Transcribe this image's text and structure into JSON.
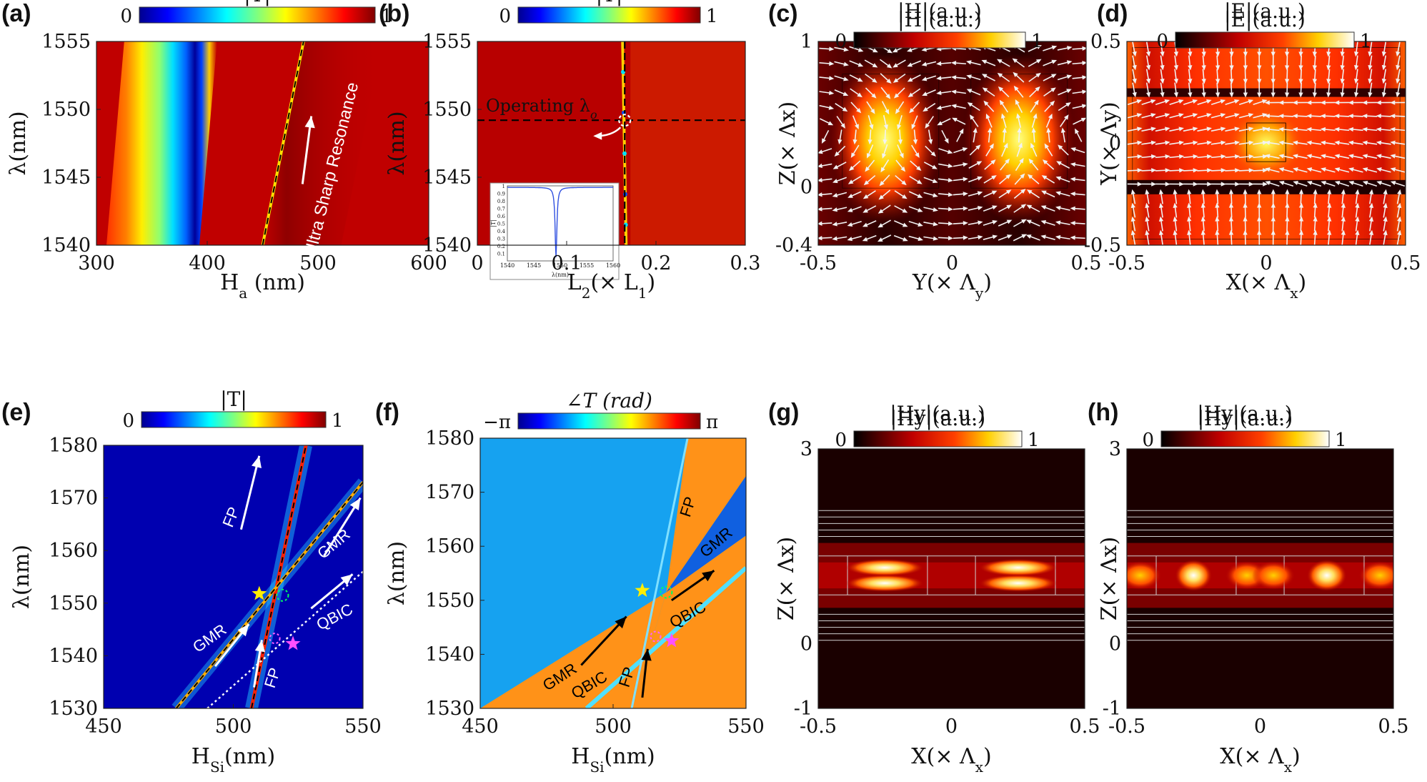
{
  "panels": [
    {
      "label": "(a)",
      "cbar_title": "|T|",
      "cbar_min": "0",
      "cbar_max": "1",
      "colormap": "jet",
      "xlabel": "H",
      "xlabel_sub": "a",
      "xlabel_unit": " (nm)",
      "ylabel": "λ(nm)",
      "xticks": [
        "300",
        "400",
        "500",
        "600"
      ],
      "yticks": [
        "1540",
        "1545",
        "1550",
        "1555"
      ],
      "annotations": [
        "Ultra Sharp Resonance"
      ]
    },
    {
      "label": "(b)",
      "cbar_title": "|T|",
      "cbar_min": "0",
      "cbar_max": "1",
      "colormap": "jet",
      "xlabel": "L",
      "xlabel_sub": "2",
      "xlabel_unit": "(× L",
      "xlabel_sub2": "1",
      "xlabel_end": ")",
      "ylabel": "λ(nm)",
      "xticks": [
        "0",
        "0.1",
        "0.2",
        "0.3"
      ],
      "yticks": [
        "1540",
        "1545",
        "1550",
        "1555"
      ],
      "annotations": [
        "Operating λ",
        "o"
      ],
      "inset": {
        "ylabel": "|T|",
        "xlabel": "λ(nm)",
        "xticks": [
          "1540",
          "1545",
          "1550",
          "1555",
          "1560"
        ],
        "yticks": [
          "0.1",
          "0.2",
          "0.3",
          "0.4",
          "0.5",
          "0.6",
          "0.7",
          "0.8",
          "0.9",
          "1"
        ]
      }
    },
    {
      "label": "(c)",
      "cbar_title": "|H|(a.u.)",
      "cbar_min": "0",
      "cbar_max": "1",
      "colormap": "hot",
      "xlabel": "Y(× Λ",
      "xlabel_sub": "y",
      "xlabel_end": ")",
      "ylabel": "Z(× Λx)",
      "xticks": [
        "-0.5",
        "0",
        "0.5"
      ],
      "yticks": [
        "-0.4",
        "0",
        "1"
      ]
    },
    {
      "label": "(d)",
      "cbar_title": "|E|(a.u.)",
      "cbar_min": "0",
      "cbar_max": "1",
      "colormap": "hot",
      "xlabel": "X(× Λ",
      "xlabel_sub": "x",
      "xlabel_end": ")",
      "ylabel": "Y(× Λy)",
      "xticks": [
        "-0.5",
        "0",
        "0.5"
      ],
      "yticks": [
        "-0.5",
        "0",
        "0.5"
      ]
    },
    {
      "label": "(e)",
      "cbar_title": "|T|",
      "cbar_min": "0",
      "cbar_max": "1",
      "colormap": "jet",
      "xlabel": "H",
      "xlabel_sub": "Si",
      "xlabel_unit": "(nm)",
      "ylabel": "λ(nm)",
      "xticks": [
        "450",
        "500",
        "550"
      ],
      "yticks": [
        "1530",
        "1540",
        "1550",
        "1560",
        "1570",
        "1580"
      ],
      "annotations": [
        "FP",
        "GMR",
        "GMR",
        "QBIC",
        "FP"
      ]
    },
    {
      "label": "(f)",
      "cbar_title": "∠T (rad)",
      "cbar_min": "−π",
      "cbar_max": "π",
      "colormap": "jet",
      "xlabel": "H",
      "xlabel_sub": "Si",
      "xlabel_unit": "(nm)",
      "ylabel": "λ(nm)",
      "xticks": [
        "450",
        "500",
        "550"
      ],
      "yticks": [
        "1530",
        "1540",
        "1550",
        "1560",
        "1570",
        "1580"
      ],
      "annotations": [
        "FP",
        "GMR",
        "QBIC",
        "GMR",
        "QBIC",
        "FP"
      ]
    },
    {
      "label": "(g)",
      "cbar_title": "|Hy|(a.u.)",
      "cbar_min": "0",
      "cbar_max": "1",
      "colormap": "hot",
      "xlabel": "X(× Λ",
      "xlabel_sub": "x",
      "xlabel_end": ")",
      "ylabel": "Z(× Λx)",
      "xticks": [
        "-0.5",
        "0",
        "0.5"
      ],
      "yticks": [
        "-1",
        "0",
        "3"
      ]
    },
    {
      "label": "(h)",
      "cbar_title": "|Hy|(a.u.)",
      "cbar_min": "0",
      "cbar_max": "1",
      "colormap": "hot",
      "xlabel": "X(× Λ",
      "xlabel_sub": "x",
      "xlabel_end": ")",
      "ylabel": "Z(× Λx)",
      "xticks": [
        "-0.5",
        "0",
        "0.5"
      ],
      "yticks": [
        "-1",
        "0",
        "3"
      ]
    }
  ],
  "chart_data": [
    {
      "type": "heatmap",
      "panel": "a",
      "quantity": "|T|",
      "xlim": [
        300,
        600
      ],
      "ylim": [
        1540,
        1555
      ],
      "features": [
        {
          "name": "dip",
          "x_at_1540": 380,
          "x_at_1555": 396
        },
        {
          "name": "sharp resonance",
          "x_at_1540": 450,
          "x_at_1555": 487
        }
      ]
    },
    {
      "type": "heatmap",
      "panel": "b",
      "quantity": "|T|",
      "xlim": [
        0,
        0.3
      ],
      "ylim": [
        1540,
        1555
      ],
      "features": [
        {
          "name": "operating wavelength",
          "y": 1549.2
        },
        {
          "name": "operating L2",
          "x": 0.165
        }
      ],
      "inset": {
        "type": "line",
        "xlim": [
          1540,
          1560
        ],
        "ylim": [
          0,
          1
        ],
        "dip_x": 1549.2,
        "dip_min": 0.05
      }
    },
    {
      "type": "heatmap",
      "panel": "c",
      "quantity": "|H|",
      "xlim": [
        -0.5,
        0.5
      ],
      "ylim": [
        -0.4,
        1
      ]
    },
    {
      "type": "heatmap",
      "panel": "d",
      "quantity": "|E|",
      "xlim": [
        -0.5,
        0.5
      ],
      "ylim": [
        -0.5,
        0.5
      ]
    },
    {
      "type": "heatmap",
      "panel": "e",
      "quantity": "|T|",
      "xlim": [
        450,
        550
      ],
      "ylim": [
        1530,
        1580
      ],
      "features": [
        {
          "name": "FP",
          "from": [
            507,
            1530
          ],
          "to": [
            528,
            1580
          ]
        },
        {
          "name": "GMR",
          "from": [
            478,
            1530
          ],
          "to": [
            550,
            1573
          ]
        },
        {
          "name": "QBIC",
          "from": [
            490,
            1530
          ],
          "to": [
            550,
            1556
          ]
        }
      ]
    },
    {
      "type": "heatmap",
      "panel": "f",
      "quantity": "∠T",
      "xlim": [
        450,
        550
      ],
      "ylim": [
        1530,
        1580
      ],
      "features": [
        {
          "name": "FP",
          "from": [
            507,
            1530
          ],
          "to": [
            528,
            1580
          ]
        },
        {
          "name": "GMR",
          "from": [
            450,
            1530
          ],
          "to": [
            550,
            1573
          ]
        },
        {
          "name": "QBIC",
          "from": [
            490,
            1530
          ],
          "to": [
            550,
            1556
          ]
        }
      ]
    },
    {
      "type": "heatmap",
      "panel": "g",
      "quantity": "|Hy|",
      "xlim": [
        -0.5,
        0.5
      ],
      "ylim": [
        -1,
        3
      ]
    },
    {
      "type": "heatmap",
      "panel": "h",
      "quantity": "|Hy|",
      "xlim": [
        -0.5,
        0.5
      ],
      "ylim": [
        -1,
        3
      ]
    }
  ]
}
